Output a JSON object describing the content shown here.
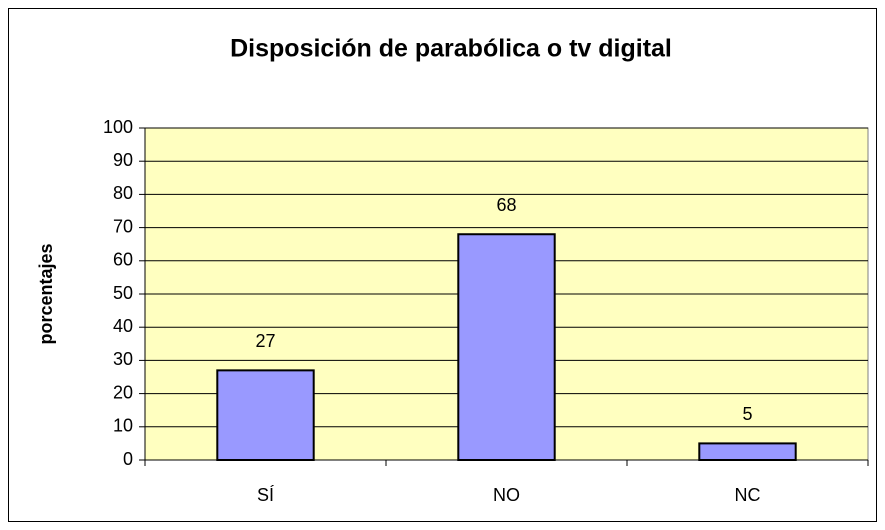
{
  "chart_data": {
    "type": "bar",
    "title": "Disposición de parabólica o tv digital",
    "y_label": "porcentajes",
    "categories": [
      "SÍ",
      "NO",
      "NC"
    ],
    "values": [
      27,
      68,
      5
    ],
    "color": "#9999ff",
    "ylim": [
      0,
      100
    ],
    "yticks": [
      0,
      10,
      20,
      30,
      40,
      50,
      60,
      70,
      80,
      90,
      100
    ],
    "grid": true,
    "plot_background": "#ffffc0"
  }
}
